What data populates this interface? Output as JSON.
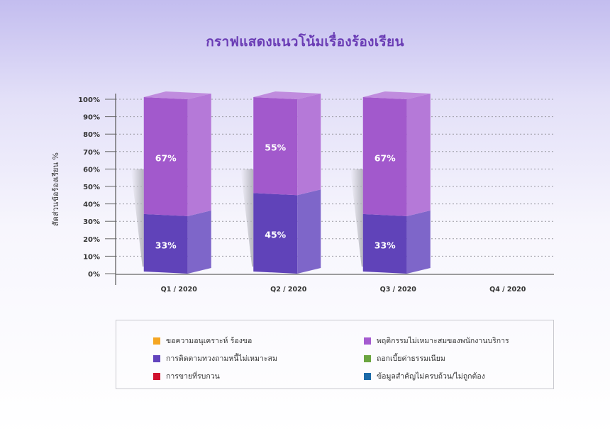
{
  "chart_data": {
    "type": "bar",
    "stacked": true,
    "style": "3d-column",
    "title": "กราฟแสดงแนวโน้มเรื่องร้องเรียน",
    "ylabel": "สัดส่วนข้อร้องเรียน %",
    "xlabel": "",
    "ylim": [
      0,
      100
    ],
    "yticks": [
      "0%",
      "10%",
      "20%",
      "30%",
      "40%",
      "50%",
      "60%",
      "70%",
      "80%",
      "90%",
      "100%"
    ],
    "categories": [
      "Q1 / 2020",
      "Q2 / 2020",
      "Q3 / 2020",
      "Q4 / 2020"
    ],
    "series": [
      {
        "name": "การติดตามทวงถามหนี้ไม่เหมาะสม",
        "color": "#6244bd",
        "values": [
          33,
          45,
          33,
          0
        ],
        "labels": [
          "33%",
          "45%",
          "33%",
          ""
        ]
      },
      {
        "name": "พฤติกรรมไม่เหมาะสมของพนักงานบริการ",
        "color": "#a55bd0",
        "values": [
          67,
          55,
          67,
          0
        ],
        "labels": [
          "67%",
          "55%",
          "67%",
          ""
        ]
      }
    ],
    "legend": {
      "placement": "bottom",
      "items": [
        {
          "name": "ขอความอนุเคราะห์ ร้องขอ",
          "color": "#f5a623"
        },
        {
          "name": "พฤติกรรมไม่เหมาะสมของพนักงานบริการ",
          "color": "#a55bd0"
        },
        {
          "name": "การติดตามทวงถามหนี้ไม่เหมาะสม",
          "color": "#6244bd"
        },
        {
          "name": "ถอกเบี้ยค่าธรรมเนียม",
          "color": "#6ba540"
        },
        {
          "name": "การขายที่รบกวน",
          "color": "#d0122e"
        },
        {
          "name": "ข้อมูลสำคัญไม่ครบถ้วน/ไม่ถูกต้อง",
          "color": "#1c6aa8"
        }
      ]
    },
    "grid": true
  }
}
